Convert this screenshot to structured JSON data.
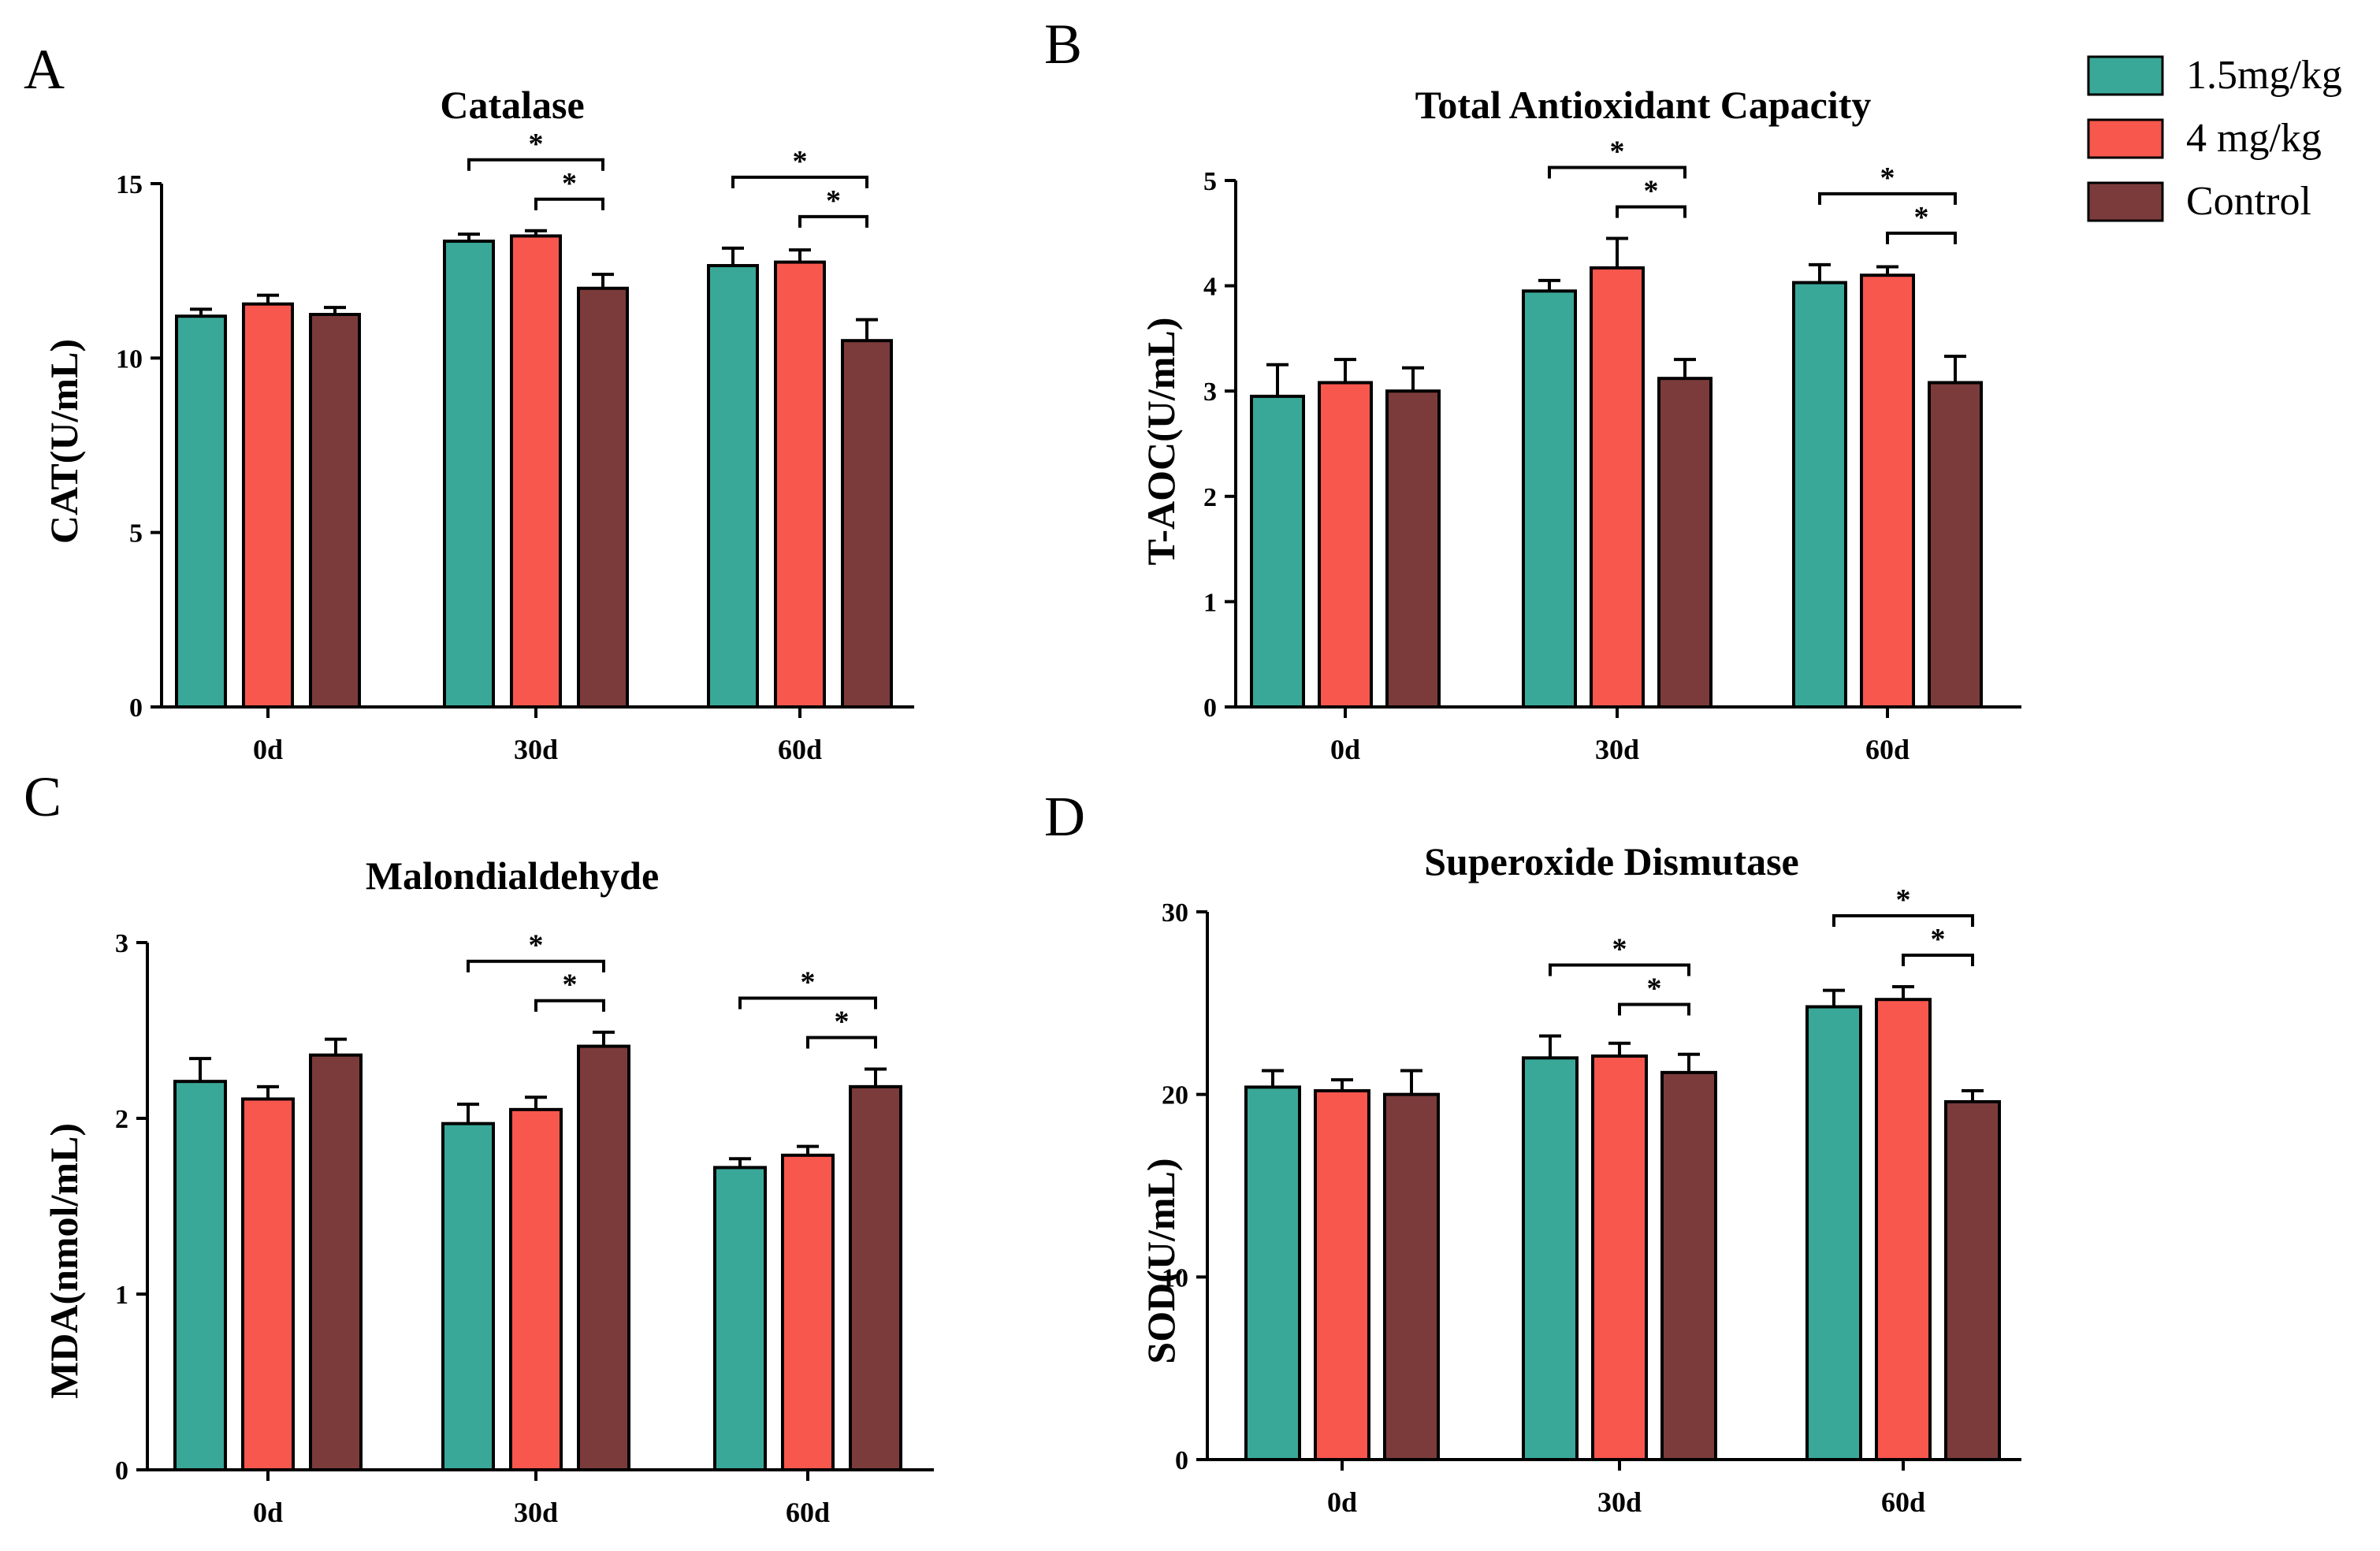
{
  "legend": {
    "items": [
      {
        "label": "1.5mg/kg",
        "color": "#3aa898"
      },
      {
        "label": "4 mg/kg",
        "color": "#f8574e"
      },
      {
        "label": "Control",
        "color": "#7c3b3b"
      }
    ]
  },
  "chart_data": [
    {
      "type": "bar",
      "panel": "A",
      "title": "Catalase",
      "xlabel": "",
      "ylabel": "CAT(U/mL)",
      "ylim": [
        0,
        15
      ],
      "yticks": [
        "0",
        "5",
        "10",
        "15"
      ],
      "categories": [
        "0d",
        "30d",
        "60d"
      ],
      "series": [
        {
          "name": "1.5mg/kg",
          "values": [
            11.2,
            13.35,
            12.65
          ],
          "errors": [
            0.2,
            0.2,
            0.5
          ]
        },
        {
          "name": "4 mg/kg",
          "values": [
            11.55,
            13.5,
            12.75
          ],
          "errors": [
            0.25,
            0.15,
            0.35
          ]
        },
        {
          "name": "Control",
          "values": [
            11.25,
            12.0,
            10.5
          ],
          "errors": [
            0.2,
            0.4,
            0.6
          ]
        }
      ],
      "significance": [
        {
          "category": "30d",
          "from": "1.5mg/kg",
          "to": "Control",
          "label": "*"
        },
        {
          "category": "30d",
          "from": "4 mg/kg",
          "to": "Control",
          "label": "*"
        },
        {
          "category": "60d",
          "from": "1.5mg/kg",
          "to": "Control",
          "label": "*"
        },
        {
          "category": "60d",
          "from": "4 mg/kg",
          "to": "Control",
          "label": "*"
        }
      ]
    },
    {
      "type": "bar",
      "panel": "B",
      "title": "Total Antioxidant Capacity",
      "xlabel": "",
      "ylabel": "T-AOC(U/mL)",
      "ylim": [
        0,
        5
      ],
      "yticks": [
        "0",
        "1",
        "2",
        "3",
        "4",
        "5"
      ],
      "categories": [
        "0d",
        "30d",
        "60d"
      ],
      "series": [
        {
          "name": "1.5mg/kg",
          "values": [
            2.95,
            3.95,
            4.03
          ],
          "errors": [
            0.3,
            0.1,
            0.17
          ]
        },
        {
          "name": "4 mg/kg",
          "values": [
            3.08,
            4.17,
            4.1
          ],
          "errors": [
            0.22,
            0.28,
            0.08
          ]
        },
        {
          "name": "Control",
          "values": [
            3.0,
            3.12,
            3.08
          ],
          "errors": [
            0.22,
            0.18,
            0.25
          ]
        }
      ],
      "significance": [
        {
          "category": "30d",
          "from": "1.5mg/kg",
          "to": "Control",
          "label": "*"
        },
        {
          "category": "30d",
          "from": "4 mg/kg",
          "to": "Control",
          "label": "*"
        },
        {
          "category": "60d",
          "from": "1.5mg/kg",
          "to": "Control",
          "label": "*"
        },
        {
          "category": "60d",
          "from": "4 mg/kg",
          "to": "Control",
          "label": "*"
        }
      ]
    },
    {
      "type": "bar",
      "panel": "C",
      "title": "Malondialdehyde",
      "xlabel": "",
      "ylabel": "MDA(nmol/mL)",
      "ylim": [
        0,
        3
      ],
      "yticks": [
        "0",
        "1",
        "2",
        "3"
      ],
      "categories": [
        "0d",
        "30d",
        "60d"
      ],
      "series": [
        {
          "name": "1.5mg/kg",
          "values": [
            2.21,
            1.97,
            1.72
          ],
          "errors": [
            0.13,
            0.11,
            0.05
          ]
        },
        {
          "name": "4 mg/kg",
          "values": [
            2.11,
            2.05,
            1.79
          ],
          "errors": [
            0.07,
            0.07,
            0.05
          ]
        },
        {
          "name": "Control",
          "values": [
            2.36,
            2.41,
            2.18
          ],
          "errors": [
            0.09,
            0.08,
            0.1
          ]
        }
      ],
      "significance": [
        {
          "category": "30d",
          "from": "1.5mg/kg",
          "to": "Control",
          "label": "*"
        },
        {
          "category": "30d",
          "from": "4 mg/kg",
          "to": "Control",
          "label": "*"
        },
        {
          "category": "60d",
          "from": "1.5mg/kg",
          "to": "Control",
          "label": "*"
        },
        {
          "category": "60d",
          "from": "4 mg/kg",
          "to": "Control",
          "label": "*"
        }
      ]
    },
    {
      "type": "bar",
      "panel": "D",
      "title": "Superoxide Dismutase",
      "xlabel": "",
      "ylabel": "SOD(U/mL)",
      "ylim": [
        0,
        30
      ],
      "yticks": [
        "0",
        "10",
        "20",
        "30"
      ],
      "categories": [
        "0d",
        "30d",
        "60d"
      ],
      "series": [
        {
          "name": "1.5mg/kg",
          "values": [
            20.4,
            22.0,
            24.8
          ],
          "errors": [
            0.9,
            1.2,
            0.9
          ]
        },
        {
          "name": "4 mg/kg",
          "values": [
            20.2,
            22.1,
            25.2
          ],
          "errors": [
            0.6,
            0.7,
            0.7
          ]
        },
        {
          "name": "Control",
          "values": [
            20.0,
            21.2,
            19.6
          ],
          "errors": [
            1.3,
            1.0,
            0.6
          ]
        }
      ],
      "significance": [
        {
          "category": "30d",
          "from": "1.5mg/kg",
          "to": "Control",
          "label": "*"
        },
        {
          "category": "30d",
          "from": "4 mg/kg",
          "to": "Control",
          "label": "*"
        },
        {
          "category": "60d",
          "from": "1.5mg/kg",
          "to": "Control",
          "label": "*"
        },
        {
          "category": "60d",
          "from": "4 mg/kg",
          "to": "Control",
          "label": "*"
        }
      ]
    }
  ]
}
